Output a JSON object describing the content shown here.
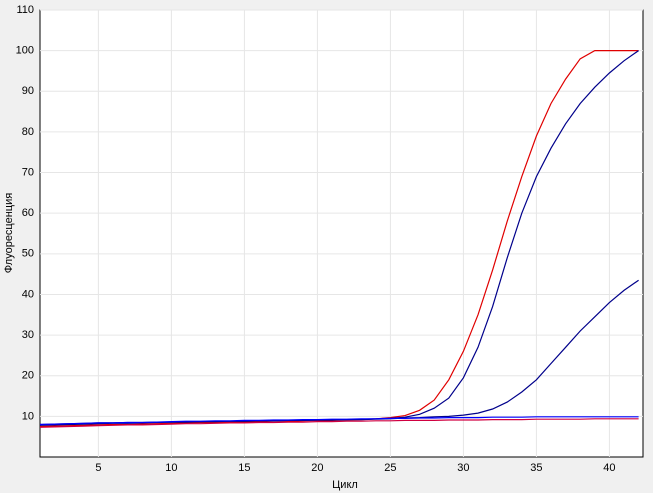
{
  "chart_data": {
    "type": "line",
    "x_label": "Цикл",
    "y_label": "Флуоресценция",
    "x": [
      1,
      2,
      3,
      4,
      5,
      6,
      7,
      8,
      9,
      10,
      11,
      12,
      13,
      14,
      15,
      16,
      17,
      18,
      19,
      20,
      21,
      22,
      23,
      24,
      25,
      26,
      27,
      28,
      29,
      30,
      31,
      32,
      33,
      34,
      35,
      36,
      37,
      38,
      39,
      40,
      41,
      42
    ],
    "series": [
      {
        "color": "#e00000",
        "values": [
          7.5,
          7.6,
          7.7,
          7.8,
          7.9,
          8,
          8,
          8.1,
          8.2,
          8.3,
          8.4,
          8.5,
          8.5,
          8.6,
          8.6,
          8.7,
          8.8,
          8.8,
          8.9,
          9,
          9,
          9.1,
          9.2,
          9.4,
          9.7,
          10.2,
          11.5,
          14,
          19,
          26,
          35,
          46,
          58,
          69,
          79,
          87,
          93,
          98,
          100,
          100,
          100,
          100
        ]
      },
      {
        "color": "#00008b",
        "values": [
          7.8,
          7.9,
          8,
          8.1,
          8.2,
          8.3,
          8.3,
          8.4,
          8.5,
          8.6,
          8.6,
          8.7,
          8.7,
          8.8,
          8.8,
          8.9,
          8.9,
          9,
          9,
          9.1,
          9.1,
          9.2,
          9.3,
          9.4,
          9.5,
          9.8,
          10.5,
          12,
          14.5,
          19.5,
          27,
          37,
          49,
          60,
          69,
          76,
          82,
          87,
          91,
          94.5,
          97.5,
          100
        ]
      },
      {
        "color": "#00008b",
        "values": [
          8,
          8.1,
          8.2,
          8.3,
          8.4,
          8.4,
          8.5,
          8.5,
          8.6,
          8.6,
          8.7,
          8.7,
          8.8,
          8.8,
          8.8,
          8.9,
          8.9,
          9,
          9,
          9.1,
          9.1,
          9.2,
          9.2,
          9.3,
          9.4,
          9.6,
          9.7,
          9.9,
          10,
          10.3,
          10.8,
          11.8,
          13.5,
          16,
          19,
          23,
          27,
          31,
          34.5,
          38,
          41,
          43.5
        ]
      },
      {
        "color": "#0000ff",
        "values": [
          8,
          8.1,
          8.2,
          8.3,
          8.4,
          8.4,
          8.5,
          8.5,
          8.6,
          8.7,
          8.8,
          8.8,
          8.9,
          8.9,
          9,
          9,
          9.1,
          9.1,
          9.2,
          9.2,
          9.3,
          9.3,
          9.4,
          9.4,
          9.5,
          9.5,
          9.6,
          9.6,
          9.7,
          9.7,
          9.7,
          9.8,
          9.8,
          9.8,
          9.9,
          9.9,
          9.9,
          9.9,
          9.9,
          9.9,
          9.9,
          9.9
        ]
      },
      {
        "color": "#d00040",
        "values": [
          7.3,
          7.4,
          7.5,
          7.6,
          7.7,
          7.8,
          7.9,
          7.9,
          8,
          8.1,
          8.2,
          8.2,
          8.3,
          8.4,
          8.4,
          8.5,
          8.5,
          8.6,
          8.6,
          8.7,
          8.7,
          8.8,
          8.8,
          8.9,
          8.9,
          9,
          9,
          9,
          9.1,
          9.1,
          9.1,
          9.2,
          9.2,
          9.2,
          9.3,
          9.3,
          9.3,
          9.3,
          9.4,
          9.4,
          9.4,
          9.4
        ]
      }
    ],
    "xlim": [
      1,
      42.3
    ],
    "xticks": [
      5,
      10,
      15,
      20,
      25,
      30,
      35,
      40
    ],
    "ylim": [
      0,
      110
    ],
    "yticks": [
      10,
      20,
      30,
      40,
      50,
      60,
      70,
      80,
      90,
      100,
      110
    ],
    "grid": true
  }
}
